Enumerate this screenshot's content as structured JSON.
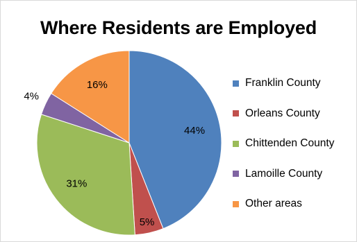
{
  "chart_data": {
    "type": "pie",
    "title": "Where Residents are Employed",
    "legend_position": "right",
    "slices": [
      {
        "label": "Franklin County",
        "value": 44,
        "value_label": "44%",
        "color": "#4F81BD"
      },
      {
        "label": "Orleans County",
        "value": 5,
        "value_label": "5%",
        "color": "#C0504D"
      },
      {
        "label": "Chittenden County",
        "value": 31,
        "value_label": "31%",
        "color": "#9BBB59"
      },
      {
        "label": "Lamoille County",
        "value": 4,
        "value_label": "4%",
        "color": "#8064A2"
      },
      {
        "label": "Other areas",
        "value": 16,
        "value_label": "16%",
        "color": "#F79646"
      }
    ]
  }
}
